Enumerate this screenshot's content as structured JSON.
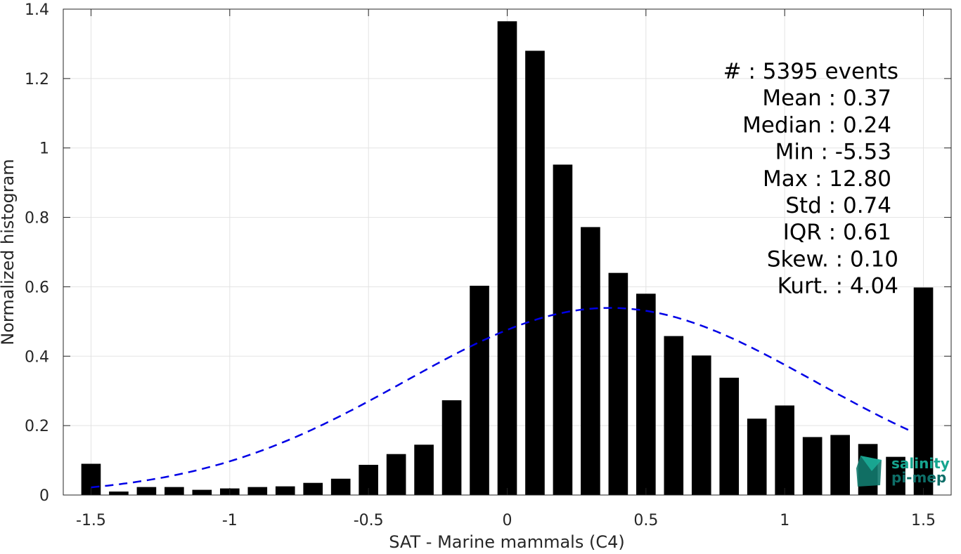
{
  "chart_data": {
    "type": "bar",
    "xlabel": "SAT - Marine mammals (C4)",
    "ylabel": "Normalized histogram",
    "xlim": [
      -1.6,
      1.6
    ],
    "ylim": [
      0,
      1.4
    ],
    "xticks": [
      -1.5,
      -1,
      -0.5,
      0,
      0.5,
      1,
      1.5
    ],
    "xtick_labels": [
      "-1.5",
      "-1",
      "-0.5",
      "0",
      "0.5",
      "1",
      "1.5"
    ],
    "yticks": [
      0,
      0.2,
      0.4,
      0.6,
      0.8,
      1,
      1.2,
      1.4
    ],
    "ytick_labels": [
      "0",
      "0.2",
      "0.4",
      "0.6",
      "0.8",
      "1",
      "1.2",
      "1.4"
    ],
    "grid": true,
    "bar_color": "#000000",
    "bars": {
      "x": [
        -1.5,
        -1.4,
        -1.3,
        -1.2,
        -1.1,
        -1.0,
        -0.9,
        -0.8,
        -0.7,
        -0.6,
        -0.5,
        -0.4,
        -0.3,
        -0.2,
        -0.1,
        0.0,
        0.1,
        0.2,
        0.3,
        0.4,
        0.5,
        0.6,
        0.7,
        0.8,
        0.9,
        1.0,
        1.1,
        1.2,
        1.3,
        1.4,
        1.5
      ],
      "values": [
        0.09,
        0.01,
        0.023,
        0.023,
        0.015,
        0.019,
        0.023,
        0.025,
        0.035,
        0.047,
        0.087,
        0.118,
        0.145,
        0.273,
        0.603,
        1.365,
        1.28,
        0.952,
        0.772,
        0.64,
        0.58,
        0.458,
        0.402,
        0.338,
        0.22,
        0.258,
        0.167,
        0.173,
        0.147,
        0.11,
        0.598
      ]
    },
    "gaussian_fit": {
      "mean": 0.37,
      "std": 0.74,
      "range": [
        -1.5,
        1.45
      ],
      "color": "#0000e6",
      "style": "dashed"
    },
    "stats_box": {
      "placement": "top-right",
      "lines": [
        "#  : 5395 events",
        "Mean : 0.37",
        "Median : 0.24",
        "Min : -5.53",
        "Max : 12.80",
        "Std : 0.74",
        "IQR : 0.61",
        "Skew. : 0.10",
        "Kurt. : 4.04"
      ]
    },
    "watermark": {
      "line1": "salinity",
      "line2": "pi-mep",
      "colors": [
        "#16a58f",
        "#0e6e68"
      ]
    }
  }
}
